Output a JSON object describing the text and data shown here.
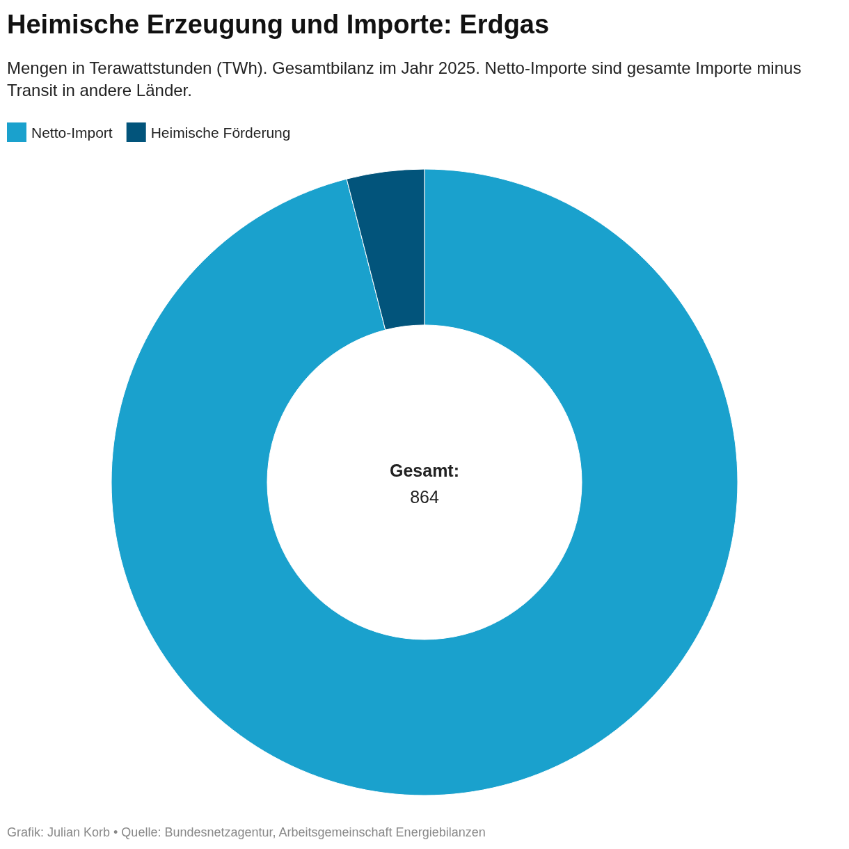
{
  "chart_data": {
    "type": "donut",
    "title": "Heimische Erzeugung und Importe: Erdgas",
    "subtitle": "Mengen in Terawattstunden (TWh). Gesamtbilanz im Jahr 2025. Netto-Importe sind gesamte Importe minus Transit in andere Länder.",
    "categories": [
      "Netto-Import",
      "Heimische Förderung"
    ],
    "values": [
      96,
      4
    ],
    "colors": [
      "#1aa1cd",
      "#02547b"
    ],
    "legend": "top left",
    "annotations": [
      "Gesamt:",
      "864",
      "Grafik: Julian Korb • Quelle: Bundesnetzagentur, Arbeitsgemeinschaft Energiebilanzen"
    ]
  }
}
